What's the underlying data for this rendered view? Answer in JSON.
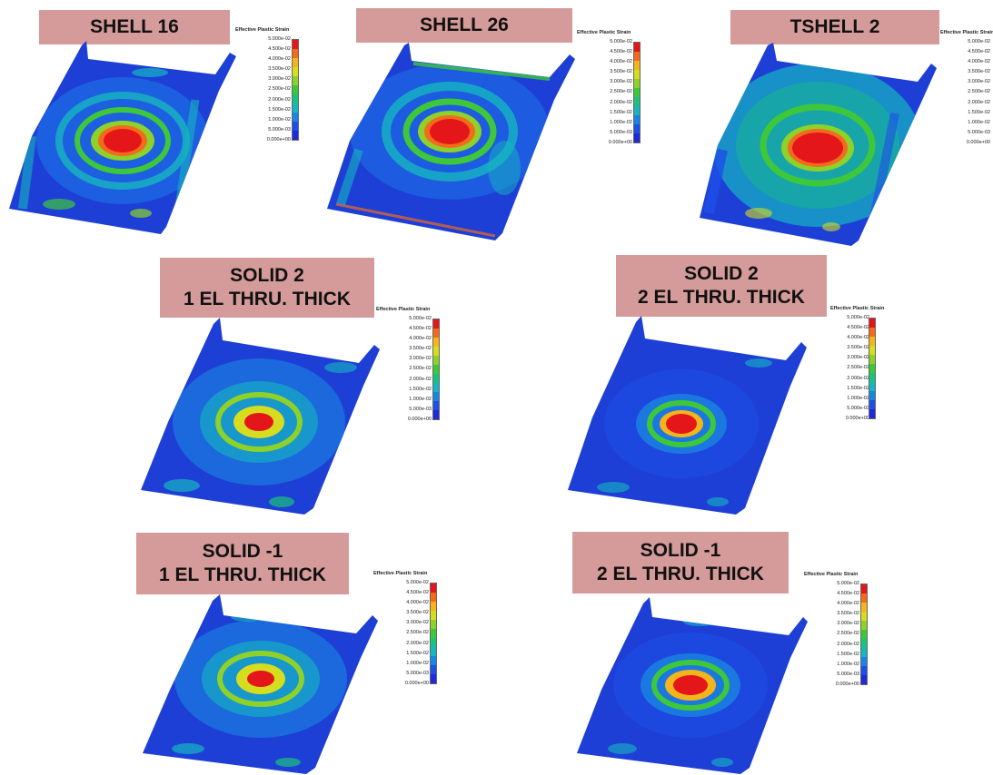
{
  "legend": {
    "title": "Effective Plastic Strain",
    "values": [
      "5.000e-02",
      "4.500e-02",
      "4.000e-02",
      "3.500e-02",
      "3.000e-02",
      "2.500e-02",
      "2.000e-02",
      "1.500e-02",
      "1.000e-02",
      "5.000e-03",
      "0.000e+00"
    ],
    "colors": [
      "#e4161a",
      "#f26b1d",
      "#f4b41c",
      "#d6dd1e",
      "#8ed12a",
      "#3fc73c",
      "#1bc27e",
      "#16b5c0",
      "#1a85e0",
      "#1e4fe6",
      "#1f2bd8"
    ]
  },
  "panels": [
    {
      "lines": [
        "SHELL 16"
      ]
    },
    {
      "lines": [
        "SHELL 26"
      ]
    },
    {
      "lines": [
        "TSHELL 2"
      ]
    },
    {
      "lines": [
        "SOLID 2",
        "1 EL THRU. THICK"
      ]
    },
    {
      "lines": [
        "SOLID 2",
        "2 EL THRU. THICK"
      ]
    },
    {
      "lines": [
        "SOLID -1",
        "1 EL THRU. THICK"
      ]
    },
    {
      "lines": [
        "SOLID -1",
        "2 EL THRU. THICK"
      ]
    }
  ]
}
